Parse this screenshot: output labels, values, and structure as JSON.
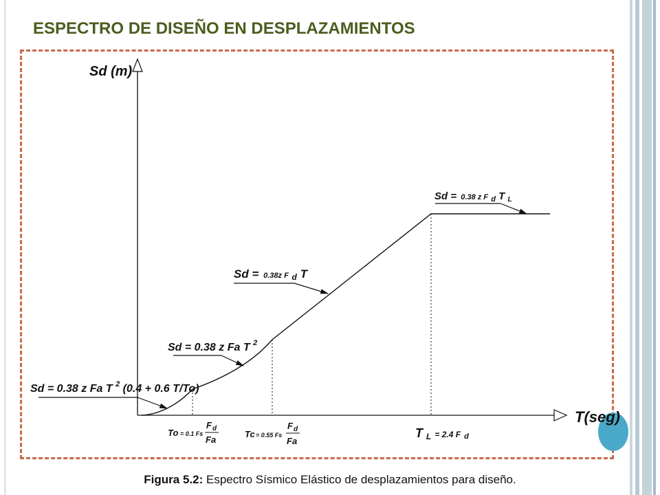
{
  "slide": {
    "title": "ESPECTRO DE DISEÑO EN DESPLAZAMIENTOS",
    "caption_label": "Figura 5.2:",
    "caption_text": "Espectro Sísmico Elástico de desplazamientos para diseño.",
    "colors": {
      "title": "#4b5d1f",
      "frame": "#c96a4a",
      "accent_dot": "#4aa9c8"
    }
  },
  "diagram": {
    "y_axis_label": "Sd (m)",
    "x_axis_label": "T(seg)",
    "eq_plateau": {
      "lhs": "Sd =",
      "expr": "0.38 z F",
      "sub": "d",
      "tail": " T",
      "tail_sub": "L"
    },
    "eq_linear": {
      "lhs": "Sd =",
      "expr": "0.38z F",
      "sub": "d",
      "tail": " T"
    },
    "eq_quadratic": {
      "text": "Sd = 0.38 z Fa T",
      "sup": "2"
    },
    "eq_initial": {
      "text": "Sd = 0.38 z Fa T",
      "sup": "2",
      "tail": "(0.4 + 0.6 T/To)"
    },
    "tick_to": {
      "lhs": "To",
      "coef": "= 0.1 Fs",
      "num": "F",
      "num_sub": "d",
      "den": "Fa"
    },
    "tick_tc": {
      "lhs": "Tc",
      "coef": "= 0.55 Fs",
      "num": "F",
      "num_sub": "d",
      "den": "Fa"
    },
    "tick_tl": {
      "lhs": "T",
      "lhs_sub": "L",
      "coef": " = 2.4 F",
      "coef_sub": "d"
    }
  }
}
